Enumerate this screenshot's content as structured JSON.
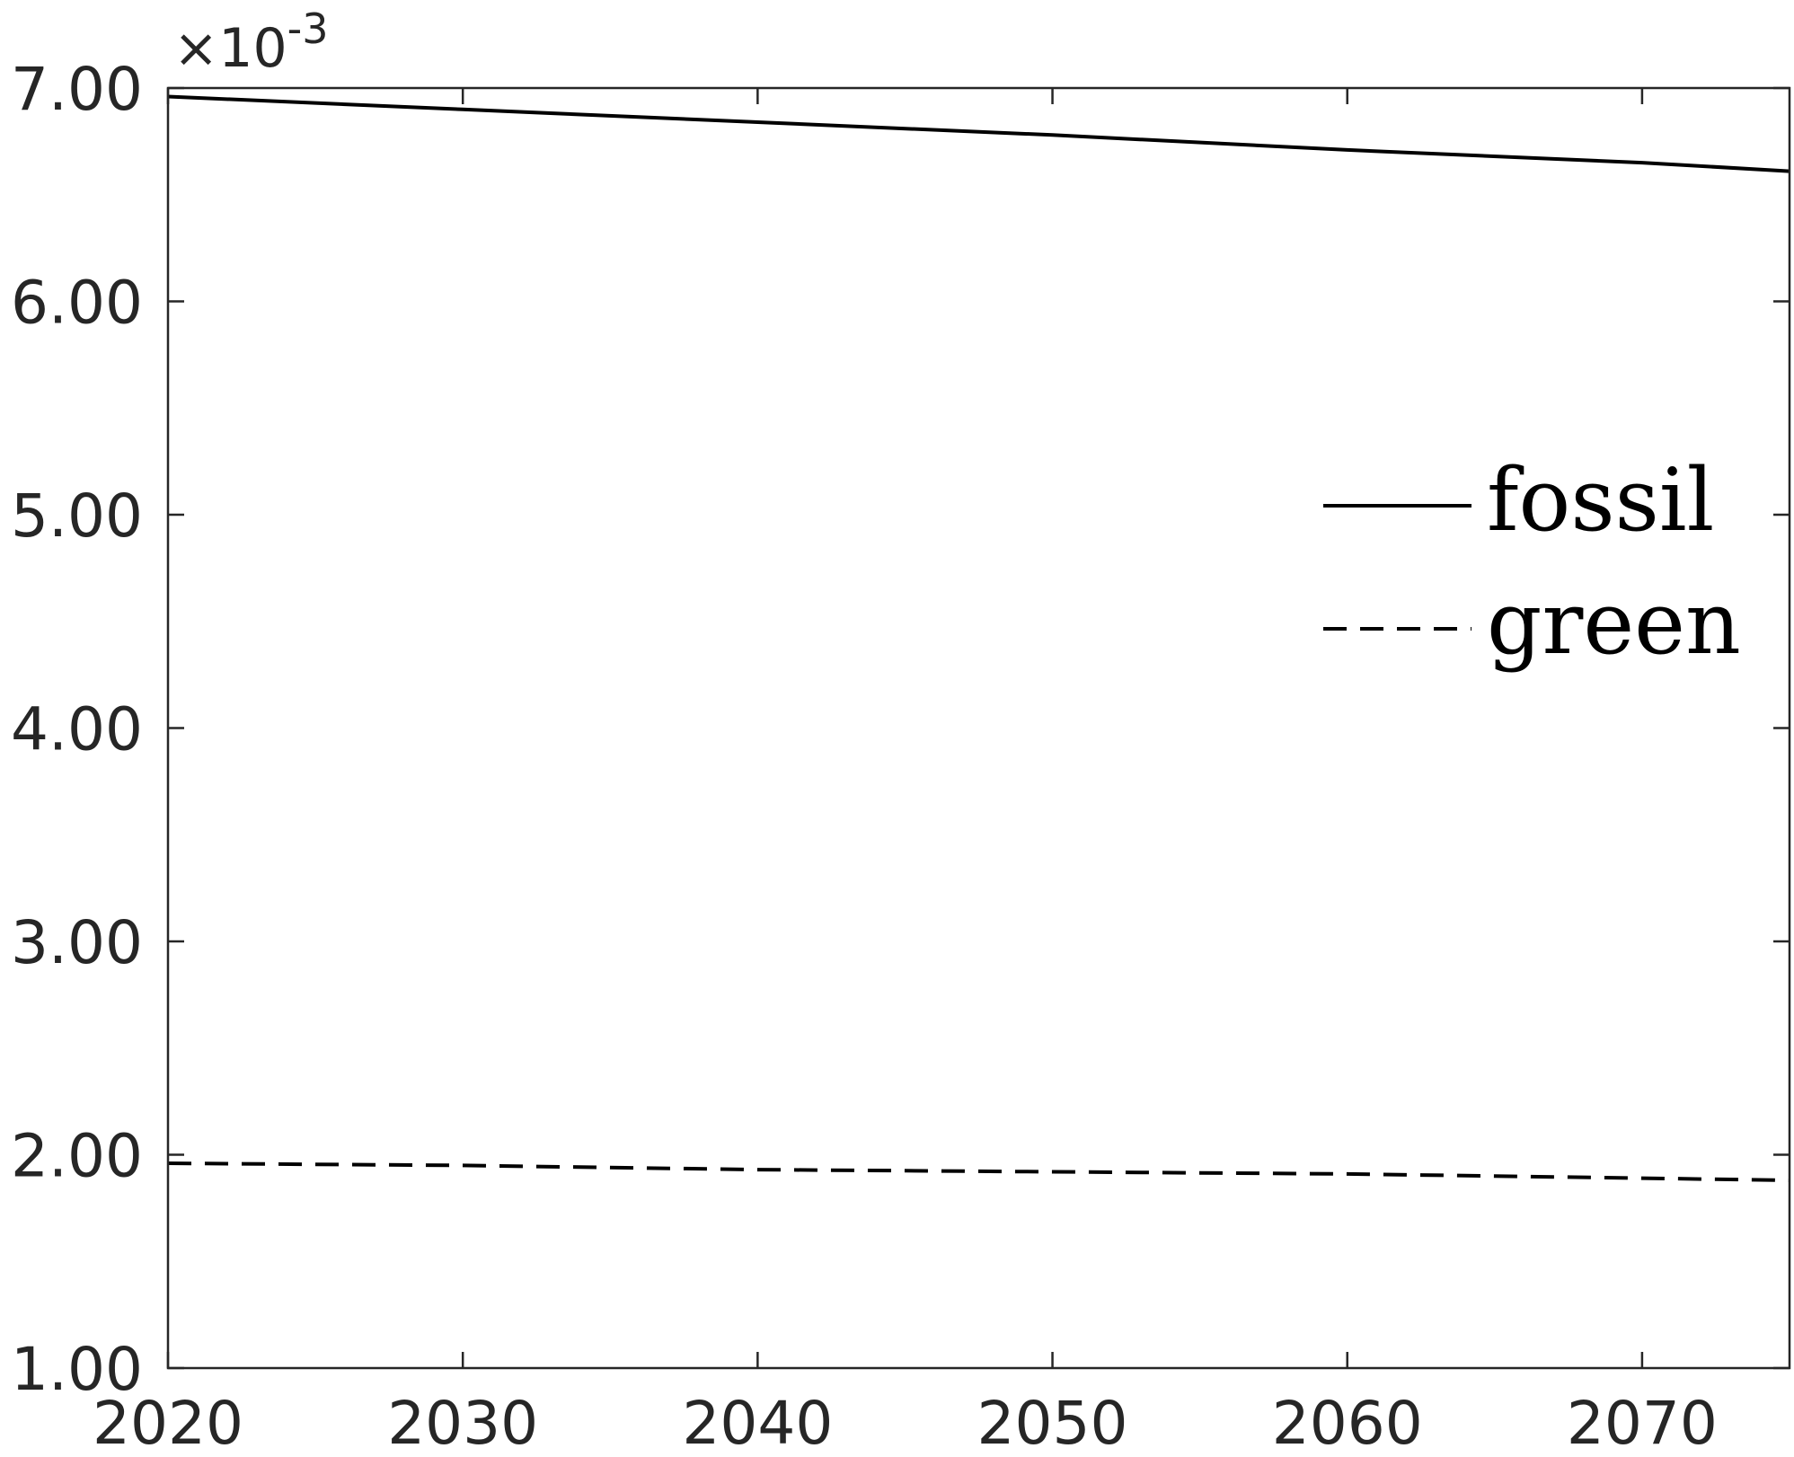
{
  "chart_data": {
    "type": "line",
    "title": "",
    "xlabel": "",
    "ylabel": "",
    "y_multiplier": {
      "base": "×10",
      "exponent": "-3"
    },
    "xlim": [
      2020,
      2075
    ],
    "ylim": [
      1.0,
      7.0
    ],
    "x_ticks": [
      2020,
      2030,
      2040,
      2050,
      2060,
      2070
    ],
    "x_tick_labels": [
      "2020",
      "2030",
      "2040",
      "2050",
      "2060",
      "2070"
    ],
    "y_ticks": [
      1,
      2,
      3,
      4,
      5,
      6,
      7
    ],
    "y_tick_labels": [
      "1.00",
      "2.00",
      "3.00",
      "4.00",
      "5.00",
      "6.00",
      "7.00"
    ],
    "grid": false,
    "legend": {
      "position": "right",
      "entries": [
        "fossil",
        "green"
      ]
    },
    "x": [
      2020,
      2030,
      2040,
      2050,
      2060,
      2070,
      2075
    ],
    "series": [
      {
        "name": "fossil",
        "style": "solid",
        "color": "#000000",
        "values": [
          6.96,
          6.9,
          6.84,
          6.78,
          6.71,
          6.65,
          6.61
        ]
      },
      {
        "name": "green",
        "style": "dashed",
        "color": "#000000",
        "values": [
          1.96,
          1.95,
          1.93,
          1.92,
          1.91,
          1.89,
          1.88
        ]
      }
    ]
  }
}
